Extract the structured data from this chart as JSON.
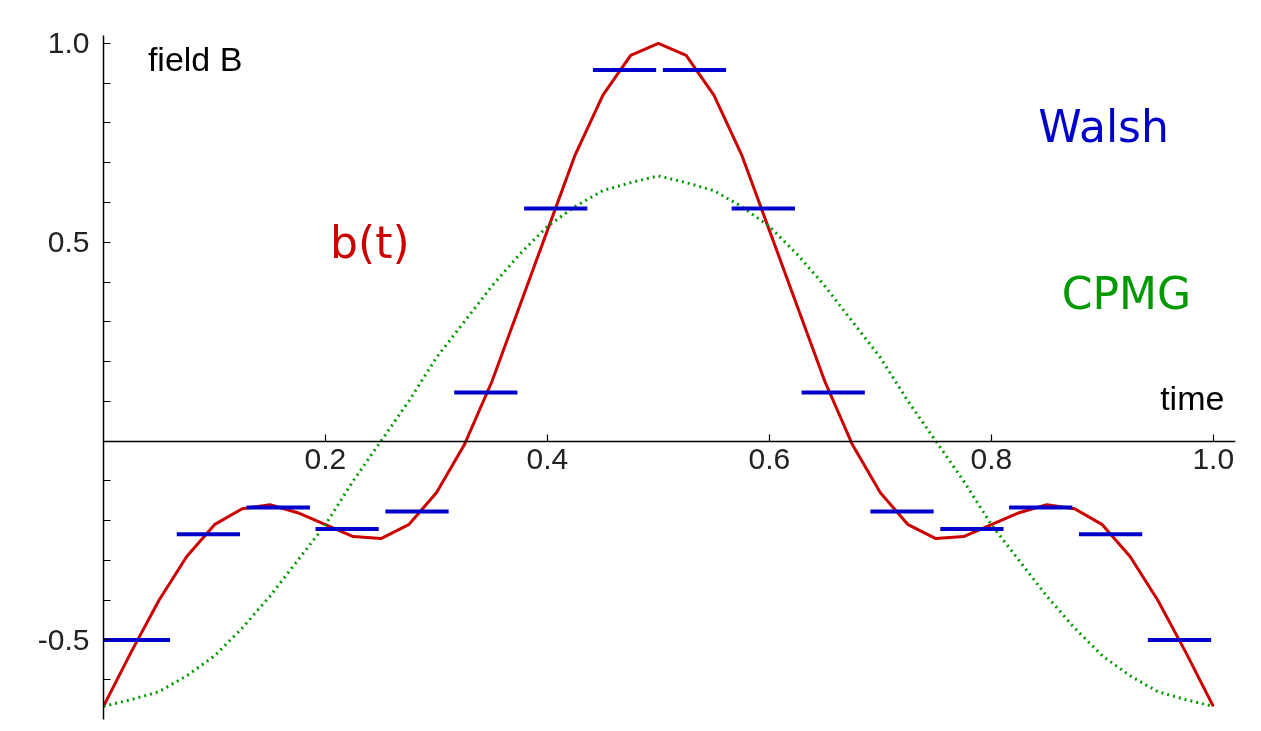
{
  "chart_data": {
    "type": "line",
    "xlabel": "time",
    "ylabel": "field B",
    "xlim": [
      0,
      1.02
    ],
    "ylim": [
      -0.7,
      1.02
    ],
    "xticks": [
      {
        "value": 0.2,
        "label": "0.2"
      },
      {
        "value": 0.4,
        "label": "0.4"
      },
      {
        "value": 0.6,
        "label": "0.6"
      },
      {
        "value": 0.8,
        "label": "0.8"
      },
      {
        "value": 1.0,
        "label": "1.0"
      }
    ],
    "yticks": [
      {
        "value": -0.6,
        "label": null
      },
      {
        "value": -0.5,
        "label": "-0.5"
      },
      {
        "value": -0.4,
        "label": null
      },
      {
        "value": -0.3,
        "label": null
      },
      {
        "value": -0.2,
        "label": null
      },
      {
        "value": -0.1,
        "label": null
      },
      {
        "value": 0.1,
        "label": null
      },
      {
        "value": 0.2,
        "label": null
      },
      {
        "value": 0.3,
        "label": null
      },
      {
        "value": 0.4,
        "label": null
      },
      {
        "value": 0.5,
        "label": "0.5"
      },
      {
        "value": 0.6,
        "label": null
      },
      {
        "value": 0.7,
        "label": null
      },
      {
        "value": 0.8,
        "label": null
      },
      {
        "value": 0.9,
        "label": null
      },
      {
        "value": 1.0,
        "label": "1.0"
      }
    ],
    "series": [
      {
        "name": "b(t)",
        "color": "#cc0000",
        "line_style": "solid",
        "x": [
          0,
          0.025,
          0.05,
          0.075,
          0.1,
          0.125,
          0.15,
          0.175,
          0.2,
          0.225,
          0.25,
          0.275,
          0.3,
          0.325,
          0.35,
          0.375,
          0.4,
          0.425,
          0.45,
          0.475,
          0.5,
          0.525,
          0.55,
          0.575,
          0.6,
          0.625,
          0.65,
          0.675,
          0.7,
          0.725,
          0.75,
          0.775,
          0.8,
          0.825,
          0.85,
          0.875,
          0.9,
          0.925,
          0.95,
          0.975,
          1.0
        ],
        "values": [
          -0.667,
          -0.53,
          -0.4,
          -0.29,
          -0.21,
          -0.17,
          -0.16,
          -0.18,
          -0.21,
          -0.24,
          -0.245,
          -0.21,
          -0.13,
          -0.01,
          0.15,
          0.34,
          0.53,
          0.72,
          0.87,
          0.97,
          1.0,
          0.97,
          0.87,
          0.72,
          0.53,
          0.34,
          0.15,
          -0.01,
          -0.13,
          -0.21,
          -0.245,
          -0.24,
          -0.21,
          -0.18,
          -0.16,
          -0.17,
          -0.21,
          -0.29,
          -0.4,
          -0.53,
          -0.667
        ]
      },
      {
        "name": "CPMG",
        "color": "#009900",
        "line_style": "dotted",
        "x": [
          0,
          0.025,
          0.05,
          0.075,
          0.1,
          0.125,
          0.15,
          0.175,
          0.2,
          0.225,
          0.25,
          0.275,
          0.3,
          0.325,
          0.35,
          0.375,
          0.4,
          0.425,
          0.45,
          0.475,
          0.5,
          0.525,
          0.55,
          0.575,
          0.6,
          0.625,
          0.65,
          0.675,
          0.7,
          0.725,
          0.75,
          0.775,
          0.8,
          0.825,
          0.85,
          0.875,
          0.9,
          0.925,
          0.95,
          0.975,
          1.0
        ],
        "values": [
          -0.667,
          -0.65,
          -0.63,
          -0.59,
          -0.54,
          -0.47,
          -0.39,
          -0.3,
          -0.21,
          -0.1,
          0,
          0.1,
          0.21,
          0.3,
          0.39,
          0.47,
          0.54,
          0.59,
          0.63,
          0.65,
          0.667,
          0.65,
          0.63,
          0.59,
          0.54,
          0.47,
          0.39,
          0.3,
          0.21,
          0.1,
          0,
          -0.1,
          -0.21,
          -0.3,
          -0.39,
          -0.47,
          -0.54,
          -0.59,
          -0.63,
          -0.65,
          -0.667
        ]
      },
      {
        "name": "Walsh",
        "color": "#0000cc",
        "line_style": "solid",
        "x": [
          0,
          0.06,
          0.063,
          0.066,
          0.123,
          0.126,
          0.129,
          0.186,
          0.189,
          0.191,
          0.248,
          0.251,
          0.254,
          0.311,
          0.314,
          0.316,
          0.373,
          0.376,
          0.379,
          0.436,
          0.439,
          0.441,
          0.498,
          0.501,
          0.504,
          0.561,
          0.564,
          0.566,
          0.623,
          0.626,
          0.629,
          0.686,
          0.689,
          0.691,
          0.748,
          0.751,
          0.754,
          0.811,
          0.814,
          0.816,
          0.873,
          0.876,
          0.879,
          0.936,
          0.939,
          0.941,
          0.998
        ],
        "values": [
          -0.5,
          -0.5,
          null,
          -0.234,
          -0.234,
          null,
          -0.167,
          -0.167,
          null,
          -0.221,
          -0.221,
          null,
          -0.177,
          -0.177,
          null,
          0.122,
          0.122,
          null,
          0.585,
          0.585,
          null,
          0.933,
          0.933,
          null,
          0.933,
          0.933,
          null,
          0.585,
          0.585,
          null,
          0.122,
          0.122,
          null,
          -0.177,
          -0.177,
          null,
          -0.221,
          -0.221,
          null,
          -0.167,
          -0.167,
          null,
          -0.234,
          -0.234,
          null,
          -0.5,
          -0.5
        ]
      }
    ]
  }
}
